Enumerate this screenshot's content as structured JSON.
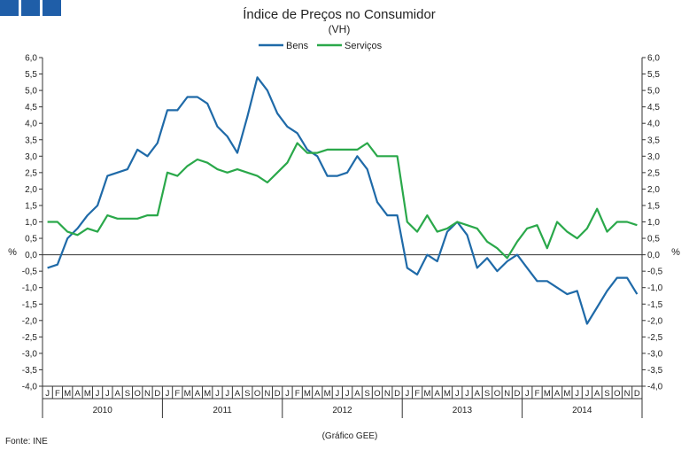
{
  "header": {
    "logo": "INE/GEE logo blocks",
    "colors": {
      "logo": "#1f5ea8"
    }
  },
  "footer": {
    "source": "Fonte: INE",
    "credit": "(Gráfico GEE)"
  },
  "chart_data": {
    "type": "line",
    "title": "Índice de Preços no Consumidor",
    "subtitle": "(VH)",
    "ylabel_left": "%",
    "ylabel_right": "%",
    "ylim": [
      -4.0,
      6.0
    ],
    "ytick_step": 0.5,
    "ytick_labels": [
      "6,0",
      "5,5",
      "5,0",
      "4,5",
      "4,0",
      "3,5",
      "3,0",
      "2,5",
      "2,0",
      "1,5",
      "1,0",
      "0,5",
      "0,0",
      "-0,5",
      "-1,0",
      "-1,5",
      "-2,0",
      "-2,5",
      "-3,0",
      "-3,5",
      "-4,0"
    ],
    "grid": false,
    "legend": "top-center",
    "month_labels": [
      "J",
      "F",
      "M",
      "A",
      "M",
      "J",
      "J",
      "A",
      "S",
      "O",
      "N",
      "D"
    ],
    "years": [
      "2010",
      "2011",
      "2012",
      "2013",
      "2014"
    ],
    "series": [
      {
        "name": "Bens",
        "color": "#1f6aa8",
        "values": [
          -0.4,
          -0.3,
          0.5,
          0.8,
          1.2,
          1.5,
          2.4,
          2.5,
          2.6,
          3.2,
          3.0,
          3.4,
          4.4,
          4.4,
          4.8,
          4.8,
          4.6,
          3.9,
          3.6,
          3.1,
          4.2,
          5.4,
          5.0,
          4.3,
          3.9,
          3.7,
          3.2,
          3.0,
          2.4,
          2.4,
          2.5,
          3.0,
          2.6,
          1.6,
          1.2,
          1.2,
          -0.4,
          -0.6,
          0.0,
          -0.2,
          0.7,
          1.0,
          0.6,
          -0.4,
          -0.1,
          -0.5,
          -0.2,
          0.0,
          -0.4,
          -0.8,
          -0.8,
          -1.0,
          -1.2,
          -1.1,
          -2.1,
          -1.6,
          -1.1,
          -0.7,
          -0.7,
          -1.2
        ]
      },
      {
        "name": "Serviços",
        "color": "#2aa84a",
        "values": [
          1.0,
          1.0,
          0.7,
          0.6,
          0.8,
          0.7,
          1.2,
          1.1,
          1.1,
          1.1,
          1.2,
          1.2,
          2.5,
          2.4,
          2.7,
          2.9,
          2.8,
          2.6,
          2.5,
          2.6,
          2.5,
          2.4,
          2.2,
          2.5,
          2.8,
          3.4,
          3.1,
          3.1,
          3.2,
          3.2,
          3.2,
          3.2,
          3.4,
          3.0,
          3.0,
          3.0,
          1.0,
          0.7,
          1.2,
          0.7,
          0.8,
          1.0,
          0.9,
          0.8,
          0.4,
          0.2,
          -0.1,
          0.4,
          0.8,
          0.9,
          0.2,
          1.0,
          0.7,
          0.5,
          0.8,
          1.4,
          0.7,
          1.0,
          1.0,
          0.9
        ]
      }
    ]
  }
}
